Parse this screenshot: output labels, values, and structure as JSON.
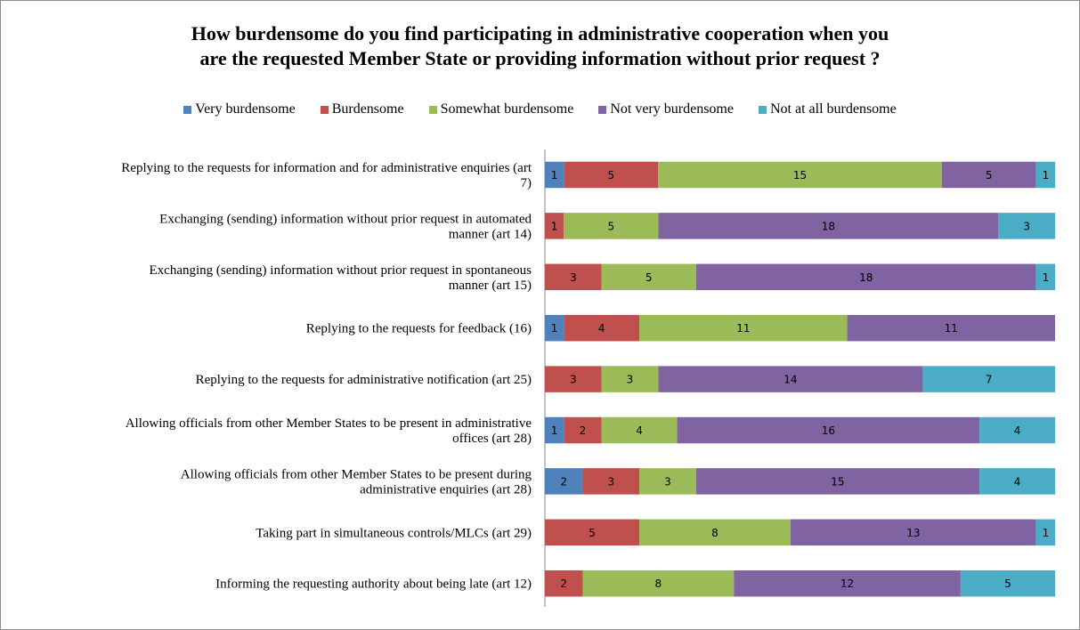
{
  "chart_data": {
    "type": "bar",
    "orientation": "horizontal",
    "stacked": true,
    "title_lines": [
      "How burdensome do you find participating in administrative cooperation when you",
      "are the requested Member State or providing information without prior request ?"
    ],
    "legend_position": "top",
    "grid": false,
    "categories": [
      [
        "Replying to the requests for information and for administrative enquiries (art",
        "7)"
      ],
      [
        "Exchanging (sending) information without prior request in automated",
        "manner (art 14)"
      ],
      [
        "Exchanging (sending) information without prior request in spontaneous",
        "manner (art 15)"
      ],
      [
        "Replying to the requests for feedback (16)"
      ],
      [
        "Replying to the requests for administrative notification (art 25)"
      ],
      [
        "Allowing officials from other Member States to be present in administrative",
        "offices (art 28)"
      ],
      [
        "Allowing officials from other Member States to be present during",
        "administrative enquiries (art 28)"
      ],
      [
        "Taking part in simultaneous controls/MLCs (art 29)"
      ],
      [
        "Informing the requesting authority about being late (art 12)"
      ]
    ],
    "series": [
      {
        "name": "Very burdensome",
        "color": "#4f81bd",
        "values": [
          1,
          0,
          0,
          1,
          0,
          1,
          2,
          0,
          0
        ]
      },
      {
        "name": "Burdensome",
        "color": "#c0504d",
        "values": [
          5,
          1,
          3,
          4,
          3,
          2,
          3,
          5,
          2
        ]
      },
      {
        "name": "Somewhat burdensome",
        "color": "#9bbb59",
        "values": [
          15,
          5,
          5,
          11,
          3,
          4,
          3,
          8,
          8
        ]
      },
      {
        "name": "Not very burdensome",
        "color": "#8064a2",
        "values": [
          5,
          18,
          18,
          11,
          14,
          16,
          15,
          13,
          12
        ]
      },
      {
        "name": "Not at all burdensome",
        "color": "#4bacc6",
        "values": [
          1,
          3,
          1,
          0,
          7,
          4,
          4,
          1,
          5
        ]
      }
    ]
  }
}
